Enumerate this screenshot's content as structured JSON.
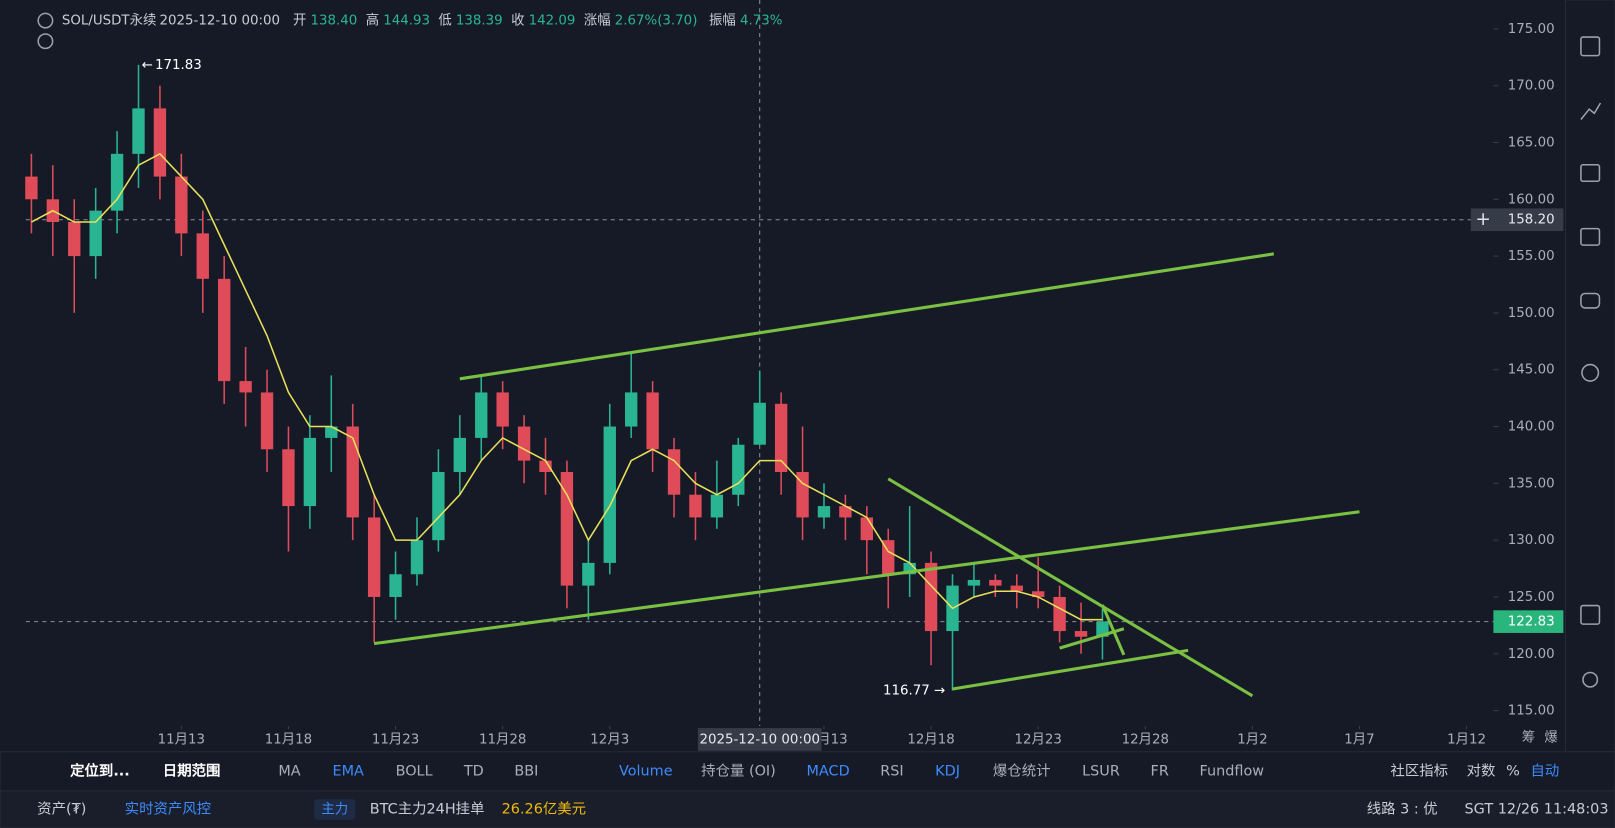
{
  "chart_data": {
    "type": "candlestick",
    "header": {
      "symbol": "SOL/USDT永续",
      "time": "2025-12-10 00:00",
      "fields": [
        {
          "name": "开",
          "value": "138.40"
        },
        {
          "name": "高",
          "value": "144.93"
        },
        {
          "name": "低",
          "value": "138.39"
        },
        {
          "name": "收",
          "value": "142.09"
        },
        {
          "name": "涨幅",
          "value": "2.67%(3.70)"
        },
        {
          "name": "振幅",
          "value": "4.73%"
        }
      ]
    },
    "x": [
      "11月6",
      "11月7",
      "11月8",
      "11月9",
      "11月10",
      "11月11",
      "11月12",
      "11月13",
      "11月14",
      "11月15",
      "11月16",
      "11月17",
      "11月18",
      "11月19",
      "11月20",
      "11月21",
      "11月22",
      "11月23",
      "11月24",
      "11月25",
      "11月26",
      "11月27",
      "11月28",
      "11月29",
      "11月30",
      "12月1",
      "12月2",
      "12月3",
      "12月4",
      "12月5",
      "12月6",
      "12月7",
      "12月8",
      "12月9",
      "12月10",
      "12月11",
      "12月12",
      "12月13",
      "12月14",
      "12月15",
      "12月16",
      "12月17",
      "12月18",
      "12月19",
      "12月20",
      "12月21",
      "12月22",
      "12月23",
      "12月24",
      "12月25",
      "12月26"
    ],
    "open": [
      162,
      160,
      158,
      155,
      159,
      164,
      168,
      162,
      157,
      153,
      144,
      143,
      138,
      133,
      139,
      140,
      132,
      125,
      127,
      130,
      136,
      139,
      143,
      140,
      137,
      136,
      126,
      128,
      140,
      143,
      138,
      134,
      132,
      134,
      138.4,
      142,
      136,
      132,
      133,
      132,
      130,
      127,
      128,
      122,
      126,
      126.5,
      126,
      125.5,
      125,
      122,
      121.5
    ],
    "high": [
      164,
      163,
      160,
      161,
      166,
      171.83,
      170,
      164,
      159,
      155,
      147,
      145,
      140,
      141,
      144.5,
      142,
      134,
      129,
      132,
      138,
      141,
      144.5,
      144,
      141,
      139,
      137,
      130,
      142,
      146.5,
      144,
      139,
      136,
      137,
      139,
      144.93,
      143,
      140,
      135,
      134,
      133,
      131,
      133,
      129,
      127,
      128,
      127,
      127,
      128.5,
      126,
      124.5,
      124
    ],
    "low": [
      157,
      155,
      150,
      153,
      157,
      161,
      160,
      155,
      150,
      142,
      140,
      136,
      129,
      131,
      136,
      130,
      121,
      123,
      126,
      129,
      134,
      137,
      138,
      135,
      134,
      124,
      123,
      127,
      139,
      136,
      132,
      130,
      131,
      133,
      138.39,
      134,
      130,
      131,
      130,
      127,
      124,
      125,
      119,
      116.77,
      125,
      125,
      124,
      124,
      121,
      120,
      119.5
    ],
    "close": [
      160,
      158,
      155,
      159,
      164,
      168,
      162,
      157,
      153,
      144,
      143,
      138,
      133,
      139,
      140,
      132,
      125,
      127,
      130,
      136,
      139,
      143,
      140,
      137,
      136,
      126,
      128,
      140,
      143,
      138,
      134,
      132,
      134,
      138.4,
      142.09,
      136,
      132,
      133,
      132,
      130,
      127,
      128,
      122,
      126,
      126.5,
      126,
      125.5,
      125,
      122,
      121.5,
      122.83
    ],
    "up_color": "#2ab592",
    "down_color": "#e04b5a",
    "ema": {
      "color": "#e8e05a",
      "values": [
        158,
        159,
        158,
        158,
        160,
        163,
        164,
        162,
        160,
        156,
        152,
        148,
        143,
        140,
        140,
        139,
        134,
        130,
        130,
        132,
        134,
        137,
        139,
        138,
        137,
        134,
        130,
        133,
        137,
        138,
        137,
        135,
        134,
        135,
        137,
        137,
        135,
        134,
        133,
        132,
        129,
        128,
        126,
        124,
        125,
        125.5,
        125.5,
        125,
        124,
        123,
        123
      ]
    },
    "ylim": [
      113.64,
      177.54
    ],
    "yticks": [
      {
        "value": 175,
        "label": "175.00"
      },
      {
        "value": 170,
        "label": "170.00"
      },
      {
        "value": 165,
        "label": "165.00"
      },
      {
        "value": 160,
        "label": "160.00"
      },
      {
        "value": 155,
        "label": "155.00"
      },
      {
        "value": 150,
        "label": "150.00"
      },
      {
        "value": 145,
        "label": "145.00"
      },
      {
        "value": 140,
        "label": "140.00"
      },
      {
        "value": 135,
        "label": "135.00"
      },
      {
        "value": 130,
        "label": "130.00"
      },
      {
        "value": 125,
        "label": "125.00"
      },
      {
        "value": 120,
        "label": "120.00"
      },
      {
        "value": 115,
        "label": "115.00"
      }
    ],
    "xticks": [
      "11月13",
      "11月18",
      "11月23",
      "11月28",
      "12月3",
      "12月13",
      "12月18",
      "12月23",
      "12月28",
      "1月2",
      "1月7",
      "1月12"
    ],
    "crosshair": {
      "x": "12月10",
      "x_label": "2025-12-10 00:00",
      "y": {
        "value": 158.2,
        "label": "158.20"
      }
    },
    "drawings": {
      "color": "#7ac143",
      "lines": [
        {
          "x": [
            "11月26",
            "1月3"
          ],
          "y": [
            144.2,
            155.2
          ]
        },
        {
          "x": [
            "11月22",
            "1月7"
          ],
          "y": [
            120.9,
            132.5
          ]
        },
        {
          "x": [
            "12月16",
            "1月2"
          ],
          "y": [
            135.4,
            116.3
          ]
        },
        {
          "x": [
            "12月19",
            "12月30"
          ],
          "y": [
            116.9,
            120.3
          ]
        },
        {
          "x": [
            "12月24",
            "12月27"
          ],
          "y": [
            120.5,
            122.2
          ]
        },
        {
          "x": [
            "12月26",
            "12月27"
          ],
          "y": [
            124.3,
            119.9
          ]
        }
      ]
    },
    "axis_extra": [
      "筹",
      "爆"
    ]
  },
  "toolbar": {
    "left": [
      "定位到...",
      "日期范围"
    ],
    "items": [
      {
        "label": "MA",
        "active": false
      },
      {
        "label": "EMA",
        "active": true
      },
      {
        "label": "BOLL",
        "active": false
      },
      {
        "label": "TD",
        "active": false
      },
      {
        "label": "BBI",
        "active": false
      },
      {
        "label": "Volume",
        "active": true
      },
      {
        "label": "持仓量 (OI)",
        "active": false
      },
      {
        "label": "MACD",
        "active": true
      },
      {
        "label": "RSI",
        "active": false
      },
      {
        "label": "KDJ",
        "active": true
      },
      {
        "label": "爆仓统计",
        "active": false
      },
      {
        "label": "LSUR",
        "active": false
      },
      {
        "label": "FR",
        "active": false
      },
      {
        "label": "Fundflow",
        "active": false
      }
    ],
    "right": [
      {
        "label": "社区指标",
        "active": false
      },
      {
        "label": "对数",
        "active": false
      },
      {
        "label": "%",
        "active": false
      },
      {
        "label": "自动",
        "active": true
      }
    ]
  },
  "status": {
    "asset": "资产(₮)",
    "risk": "实时资产风控",
    "tag": "主力",
    "order_label": "BTC主力24H挂单",
    "order_value": "26.26亿美元",
    "line": "线路 3 : 优",
    "clock": "SGT 12/26 11:48:03"
  }
}
